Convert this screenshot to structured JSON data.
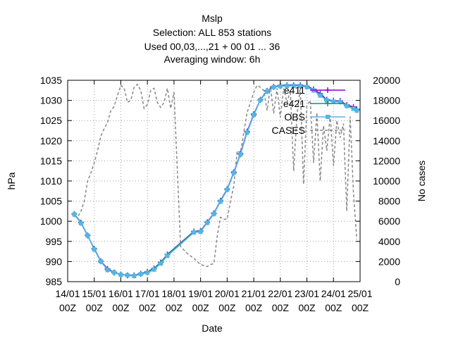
{
  "chart_data": {
    "type": "line",
    "title": [
      "Mslp",
      "Selection: ALL     853 stations",
      "Used  00,03,...,21  + 00 01 ... 36",
      "Averaging window:  6h"
    ],
    "xlabel": "Date",
    "ylabel": "hPa",
    "y2label": "No cases",
    "xlim": [
      0,
      264
    ],
    "ylim": [
      985,
      1035
    ],
    "y2lim": [
      0,
      20000
    ],
    "grid": true,
    "legend_position": "top-right",
    "x_ticks": [
      {
        "x": 0,
        "line1": "14/01",
        "line2": "00Z"
      },
      {
        "x": 24,
        "line1": "15/01",
        "line2": "00Z"
      },
      {
        "x": 48,
        "line1": "16/01",
        "line2": "00Z"
      },
      {
        "x": 72,
        "line1": "17/01",
        "line2": "00Z"
      },
      {
        "x": 96,
        "line1": "18/01",
        "line2": "00Z"
      },
      {
        "x": 120,
        "line1": "19/01",
        "line2": "00Z"
      },
      {
        "x": 144,
        "line1": "20/01",
        "line2": "00Z"
      },
      {
        "x": 168,
        "line1": "21/01",
        "line2": "00Z"
      },
      {
        "x": 192,
        "line1": "22/01",
        "line2": "00Z"
      },
      {
        "x": 216,
        "line1": "23/01",
        "line2": "00Z"
      },
      {
        "x": 240,
        "line1": "24/01",
        "line2": "00Z"
      },
      {
        "x": 264,
        "line1": "25/01",
        "line2": "00Z"
      }
    ],
    "y_ticks": [
      985,
      990,
      995,
      1000,
      1005,
      1010,
      1015,
      1020,
      1025,
      1030,
      1035
    ],
    "y2_ticks": [
      0,
      2000,
      4000,
      6000,
      8000,
      10000,
      12000,
      14000,
      16000,
      18000,
      20000
    ],
    "series": [
      {
        "name": "e411",
        "color": "#9400d3",
        "marker": "plus",
        "axis": "y",
        "x": [
          6,
          12,
          18,
          24,
          30,
          36,
          42,
          48,
          54,
          60,
          66,
          72,
          78,
          84,
          90,
          114,
          120,
          126,
          132,
          138,
          144,
          150,
          156,
          162,
          168,
          174,
          180,
          186,
          192,
          198,
          204,
          210,
          216,
          222,
          228,
          234,
          240,
          246,
          252,
          258,
          261
        ],
        "values": [
          1001.8,
          999.7,
          996.5,
          993.2,
          990.1,
          988.2,
          987.3,
          986.8,
          986.6,
          986.6,
          987.0,
          987.5,
          988.3,
          989.8,
          991.8,
          997.5,
          997.6,
          999.8,
          1002.0,
          1005.1,
          1008.0,
          1012.2,
          1016.8,
          1022.3,
          1026.6,
          1030.2,
          1032.4,
          1033.4,
          1033.7,
          1033.8,
          1033.8,
          1033.8,
          1033.5,
          1032.8,
          1031.7,
          1030.2,
          1029.9,
          1029.9,
          1028.9,
          1028.4,
          1027.8
        ]
      },
      {
        "name": "e421",
        "color": "#009e73",
        "marker": "plus",
        "axis": "y",
        "x": [
          6,
          12,
          18,
          24,
          30,
          36,
          42,
          48,
          54,
          60,
          66,
          72,
          78,
          84,
          90,
          114,
          120,
          126,
          132,
          138,
          144,
          150,
          156,
          162,
          168,
          174,
          180,
          186,
          192,
          198,
          204,
          210,
          216,
          222,
          228,
          234,
          240,
          246,
          252,
          258,
          261
        ],
        "values": [
          1001.8,
          999.6,
          996.4,
          993.1,
          990.0,
          988.0,
          987.2,
          986.8,
          986.5,
          986.5,
          986.9,
          987.4,
          988.2,
          989.7,
          991.7,
          997.4,
          997.5,
          999.7,
          1001.9,
          1005.0,
          1007.9,
          1012.0,
          1016.6,
          1022.1,
          1026.4,
          1030.1,
          1032.3,
          1033.3,
          1033.6,
          1033.7,
          1033.7,
          1033.7,
          1033.4,
          1032.6,
          1031.4,
          1030.0,
          1029.8,
          1029.7,
          1028.7,
          1028.1,
          1027.6
        ]
      },
      {
        "name": "OBS",
        "color": "#56b4e9",
        "marker": "square",
        "axis": "y",
        "x": [
          6,
          12,
          18,
          24,
          30,
          36,
          42,
          48,
          54,
          60,
          66,
          72,
          78,
          84,
          90,
          114,
          120,
          126,
          132,
          138,
          144,
          150,
          156,
          162,
          168,
          174,
          180,
          186,
          192,
          198,
          204,
          210,
          216,
          222,
          228,
          234,
          240,
          246,
          252,
          258,
          261
        ],
        "values": [
          1001.7,
          999.5,
          996.5,
          993.0,
          990.0,
          987.9,
          987.3,
          986.7,
          986.6,
          986.4,
          986.9,
          987.2,
          988.0,
          989.5,
          991.4,
          997.2,
          997.4,
          999.6,
          1001.8,
          1004.9,
          1007.8,
          1012.1,
          1016.6,
          1022.0,
          1026.4,
          1030.1,
          1032.2,
          1033.3,
          1033.5,
          1033.6,
          1033.6,
          1033.6,
          1033.3,
          1032.5,
          1031.2,
          1030.0,
          1029.7,
          1029.6,
          1028.6,
          1027.9,
          1027.5
        ]
      },
      {
        "name": "CASES",
        "color": "#888888",
        "dashed": true,
        "axis": "y2",
        "x": [
          6,
          9,
          12,
          15,
          18,
          21,
          24,
          27,
          30,
          33,
          36,
          39,
          42,
          45,
          48,
          51,
          54,
          57,
          60,
          63,
          66,
          69,
          72,
          75,
          78,
          81,
          84,
          87,
          90,
          93,
          96,
          102,
          108,
          114,
          120,
          123,
          126,
          129,
          132,
          135,
          138,
          141,
          144,
          147,
          150,
          153,
          156,
          159,
          162,
          165,
          168,
          171,
          174,
          177,
          180,
          183,
          186,
          189,
          192,
          195,
          198,
          201,
          204,
          207,
          210,
          213,
          216,
          219,
          222,
          225,
          228,
          231,
          234,
          237,
          240,
          243,
          246,
          249,
          252,
          255,
          258,
          261
        ],
        "values": [
          6500,
          6400,
          7000,
          8000,
          10000,
          10800,
          11800,
          13000,
          14500,
          15200,
          15800,
          17000,
          17400,
          18500,
          19500,
          19200,
          17800,
          18000,
          19300,
          19600,
          19000,
          17200,
          17600,
          19000,
          19200,
          17800,
          17300,
          17800,
          19200,
          17200,
          18800,
          3500,
          2800,
          2300,
          1700,
          1600,
          1500,
          1700,
          1800,
          4500,
          6400,
          6200,
          6200,
          8000,
          9500,
          13000,
          12800,
          14800,
          16800,
          17800,
          18800,
          19500,
          19300,
          19000,
          17000,
          19400,
          16700,
          19200,
          16300,
          19200,
          17800,
          19000,
          11000,
          16500,
          19300,
          9700,
          17500,
          18000,
          11800,
          16800,
          10000,
          15500,
          13000,
          16500,
          11500,
          16000,
          14300,
          15700,
          7000,
          16400,
          8800,
          4200
        ]
      }
    ]
  }
}
